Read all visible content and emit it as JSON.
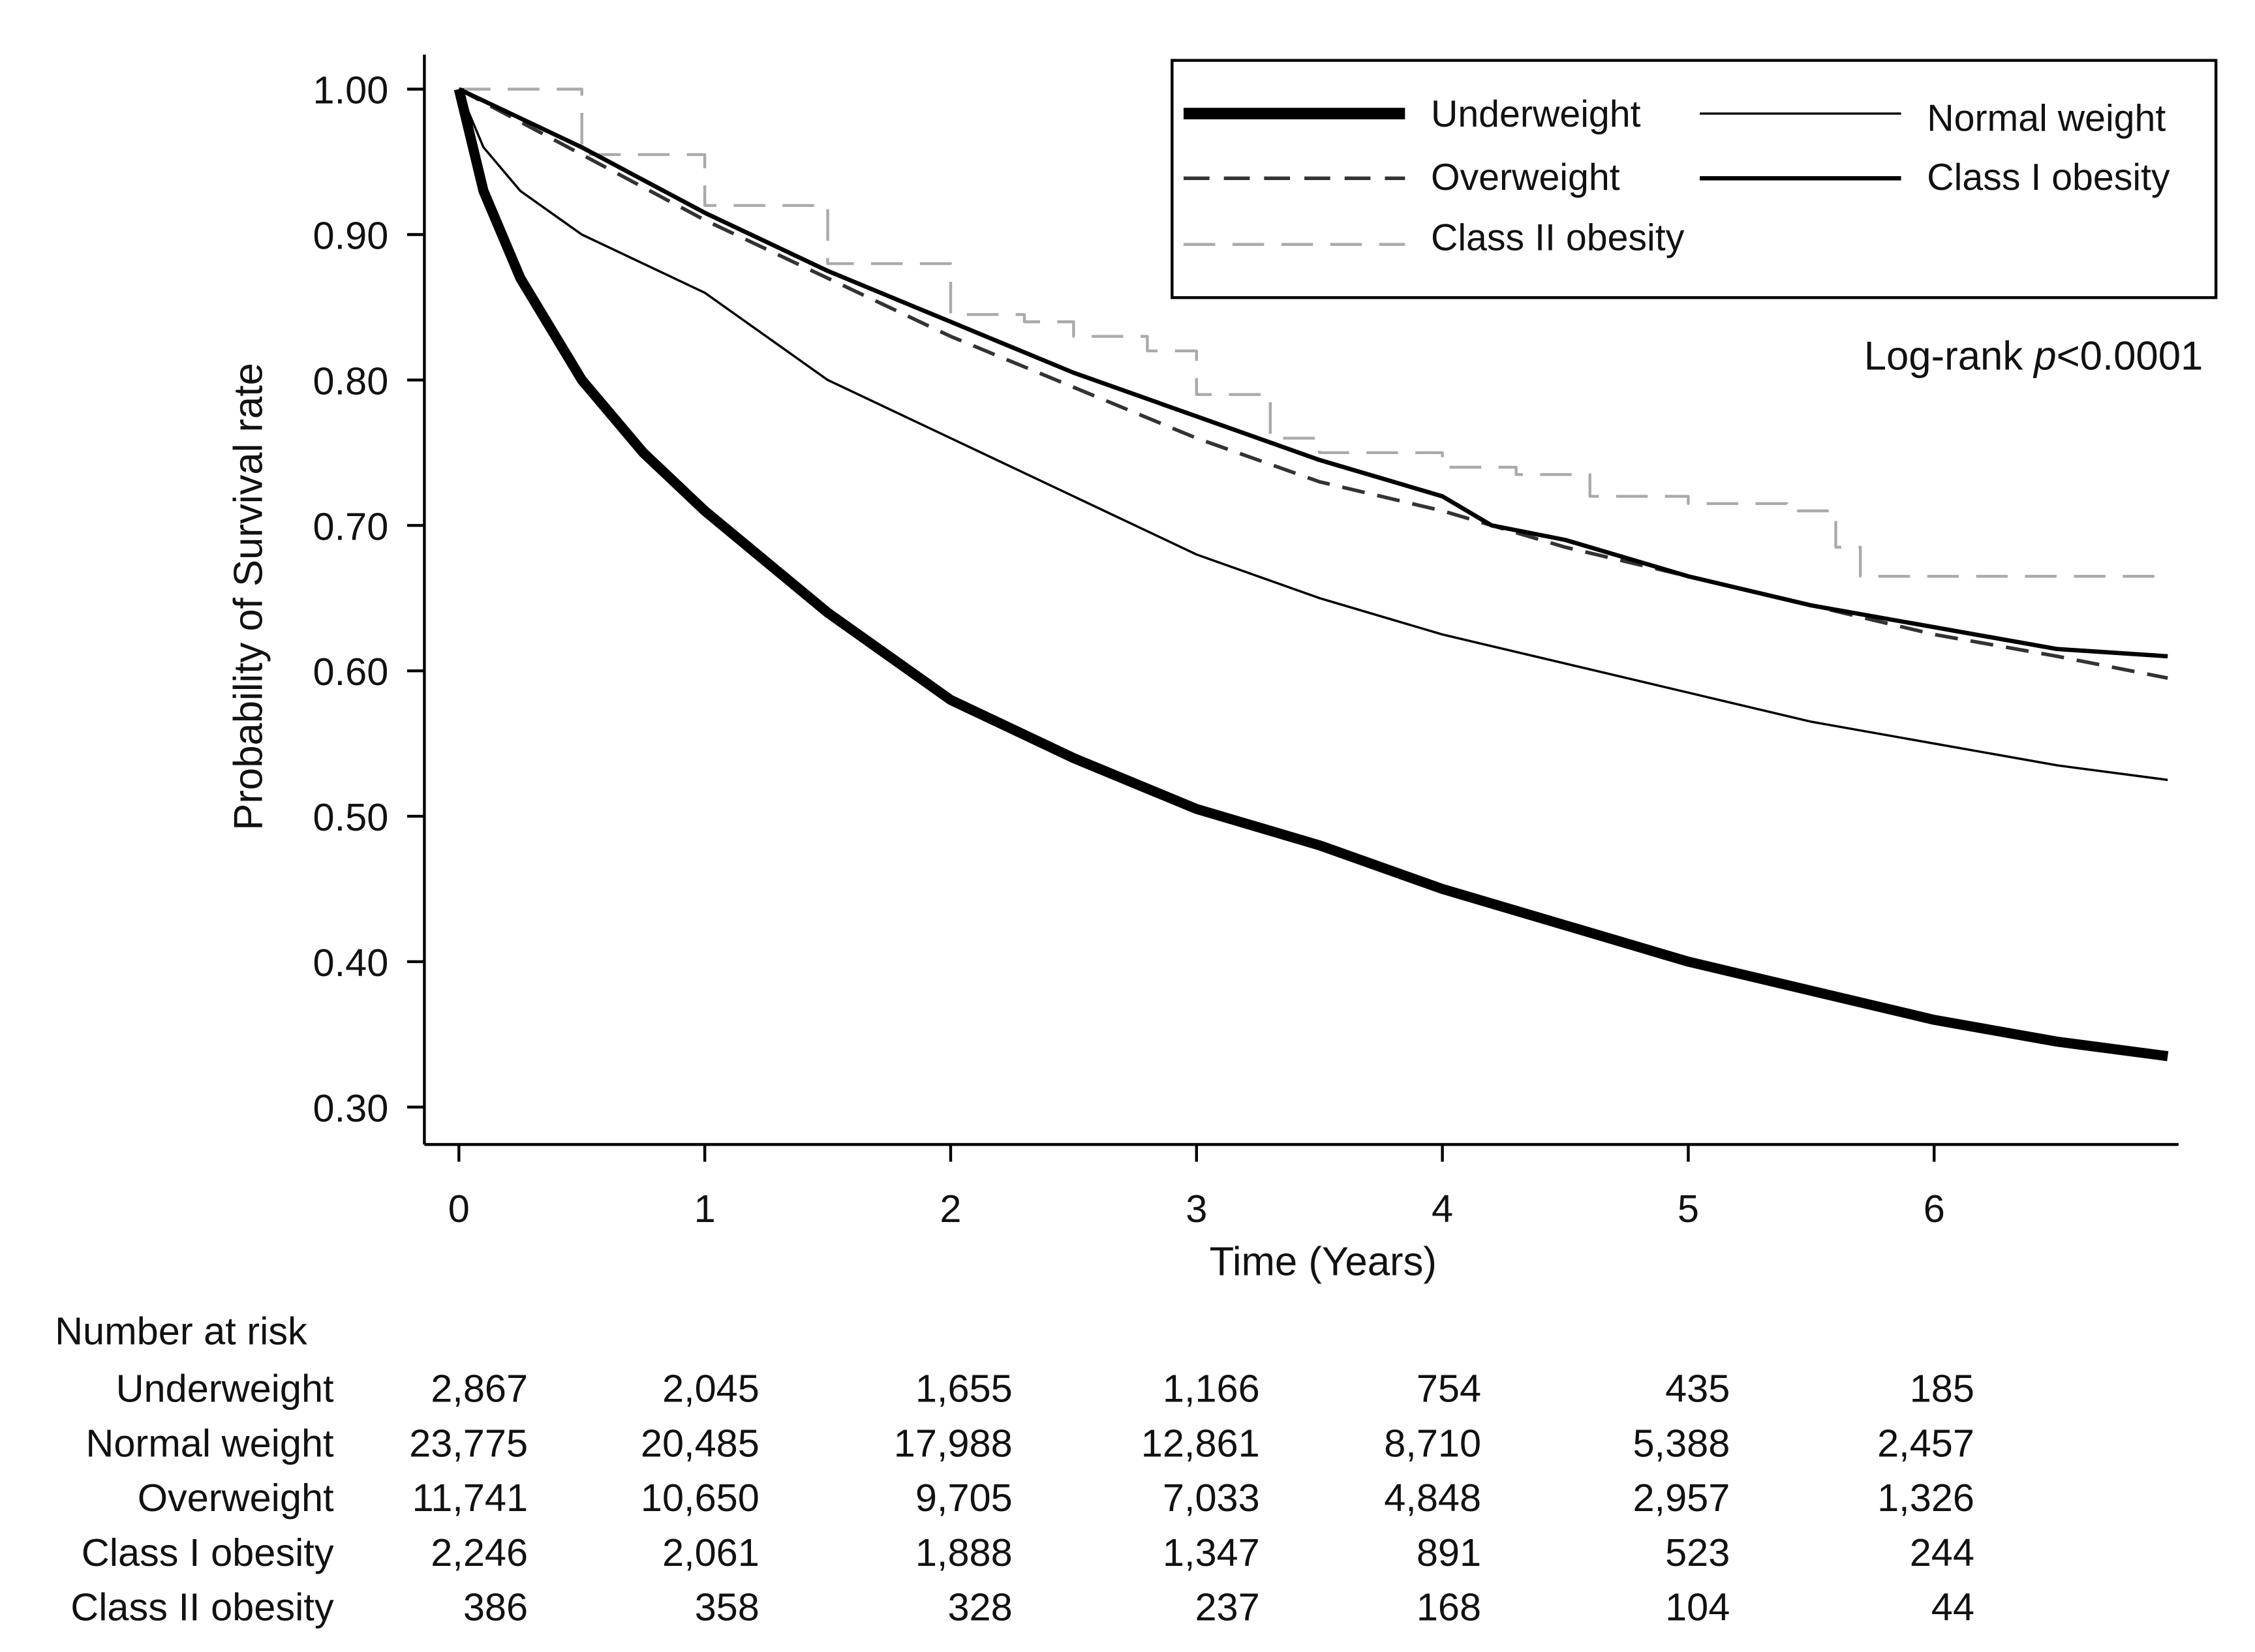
{
  "chart_data": {
    "type": "line",
    "title": "",
    "xlabel": "Time (Years)",
    "ylabel": "Probability of Survival rate",
    "xlim": [
      0,
      6.95
    ],
    "ylim": [
      0.3,
      1.0
    ],
    "x_ticks": [
      "0",
      "1",
      "2",
      "3",
      "4",
      "5",
      "6"
    ],
    "y_ticks": [
      "0.30",
      "0.40",
      "0.50",
      "0.60",
      "0.70",
      "0.80",
      "0.90",
      "1.00"
    ],
    "grid": false,
    "legend_placement": "top-right",
    "annotation": {
      "prefix": "Log-rank ",
      "italic": "p",
      "suffix": "<0.0001"
    },
    "series": [
      {
        "name": "Underweight",
        "style": "thick-solid",
        "color": "#000000",
        "x": [
          0,
          0.1,
          0.25,
          0.5,
          0.75,
          1,
          1.5,
          2,
          2.5,
          3,
          3.5,
          4,
          4.5,
          5,
          5.5,
          6,
          6.5,
          6.95
        ],
        "y": [
          1.0,
          0.93,
          0.87,
          0.8,
          0.75,
          0.71,
          0.64,
          0.58,
          0.54,
          0.505,
          0.48,
          0.45,
          0.425,
          0.4,
          0.38,
          0.36,
          0.345,
          0.335
        ]
      },
      {
        "name": "Normal weight",
        "style": "thin-solid",
        "color": "#000000",
        "x": [
          0,
          0.1,
          0.25,
          0.5,
          1,
          1.5,
          2,
          2.5,
          3,
          3.5,
          4,
          4.5,
          5,
          5.5,
          6,
          6.5,
          6.95
        ],
        "y": [
          1.0,
          0.96,
          0.93,
          0.9,
          0.86,
          0.8,
          0.76,
          0.72,
          0.68,
          0.65,
          0.625,
          0.605,
          0.585,
          0.565,
          0.55,
          0.535,
          0.525
        ]
      },
      {
        "name": "Overweight",
        "style": "dashed",
        "color": "#333333",
        "x": [
          0,
          0.5,
          1,
          1.5,
          2,
          2.5,
          3,
          3.5,
          4,
          4.5,
          5,
          5.5,
          6,
          6.5,
          6.95
        ],
        "y": [
          1.0,
          0.955,
          0.91,
          0.87,
          0.83,
          0.795,
          0.76,
          0.73,
          0.71,
          0.685,
          0.665,
          0.645,
          0.625,
          0.61,
          0.595
        ]
      },
      {
        "name": "Class I obesity",
        "style": "medium-solid",
        "color": "#000000",
        "x": [
          0,
          0.5,
          1,
          1.5,
          2,
          2.5,
          3,
          3.5,
          4,
          4.2,
          4.5,
          5,
          5.5,
          6,
          6.5,
          6.95
        ],
        "y": [
          1.0,
          0.96,
          0.915,
          0.875,
          0.84,
          0.805,
          0.775,
          0.745,
          0.72,
          0.7,
          0.69,
          0.665,
          0.645,
          0.63,
          0.615,
          0.61
        ]
      },
      {
        "name": "Class II obesity",
        "style": "light-dashed-step",
        "color": "#aaaaaa",
        "x": [
          0,
          0.5,
          1,
          1.5,
          2,
          2.3,
          2.5,
          2.8,
          3,
          3.3,
          3.5,
          4,
          4.3,
          4.6,
          5,
          5.4,
          5.6,
          5.7,
          6.95
        ],
        "y": [
          1.0,
          0.955,
          0.92,
          0.88,
          0.845,
          0.84,
          0.83,
          0.82,
          0.79,
          0.76,
          0.75,
          0.74,
          0.735,
          0.72,
          0.715,
          0.71,
          0.685,
          0.665,
          0.665
        ]
      }
    ],
    "risk_table": {
      "title": "Number at risk",
      "rows": [
        {
          "label": "Underweight",
          "values": [
            "2,867",
            "2,045",
            "1,655",
            "1,166",
            "754",
            "435",
            "185"
          ]
        },
        {
          "label": "Normal weight",
          "values": [
            "23,775",
            "20,485",
            "17,988",
            "12,861",
            "8,710",
            "5,388",
            "2,457"
          ]
        },
        {
          "label": "Overweight",
          "values": [
            "11,741",
            "10,650",
            "9,705",
            "7,033",
            "4,848",
            "2,957",
            "1,326"
          ]
        },
        {
          "label": "Class I obesity",
          "values": [
            "2,246",
            "2,061",
            "1,888",
            "1,347",
            "891",
            "523",
            "244"
          ]
        },
        {
          "label": "Class II obesity",
          "values": [
            "386",
            "358",
            "328",
            "237",
            "168",
            "104",
            "44"
          ]
        }
      ]
    }
  }
}
